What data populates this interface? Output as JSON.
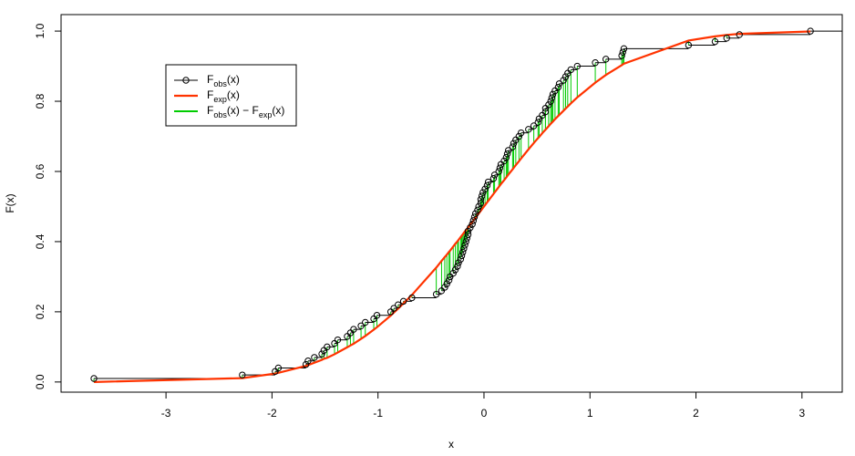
{
  "chart_data": {
    "type": "ecdf",
    "xlabel": "x",
    "ylabel": "F(x)",
    "x": [
      -3.68,
      -2.28,
      -1.97,
      -1.94,
      -1.68,
      -1.66,
      -1.6,
      -1.53,
      -1.51,
      -1.48,
      -1.41,
      -1.38,
      -1.29,
      -1.26,
      -1.23,
      -1.16,
      -1.12,
      -1.04,
      -1.01,
      -0.88,
      -0.85,
      -0.81,
      -0.76,
      -0.68,
      -0.45,
      -0.4,
      -0.37,
      -0.35,
      -0.33,
      -0.32,
      -0.29,
      -0.27,
      -0.25,
      -0.24,
      -0.22,
      -0.21,
      -0.2,
      -0.19,
      -0.18,
      -0.17,
      -0.16,
      -0.15,
      -0.15,
      -0.13,
      -0.11,
      -0.1,
      -0.09,
      -0.08,
      -0.06,
      -0.05,
      -0.03,
      -0.03,
      -0.02,
      -0.01,
      0.01,
      0.03,
      0.04,
      0.09,
      0.1,
      0.14,
      0.15,
      0.16,
      0.19,
      0.21,
      0.22,
      0.23,
      0.27,
      0.28,
      0.3,
      0.33,
      0.35,
      0.42,
      0.47,
      0.51,
      0.52,
      0.55,
      0.58,
      0.58,
      0.61,
      0.63,
      0.64,
      0.65,
      0.67,
      0.7,
      0.71,
      0.75,
      0.77,
      0.79,
      0.82,
      0.88,
      1.05,
      1.15,
      1.3,
      1.31,
      1.32,
      1.93,
      2.18,
      2.29,
      2.41,
      3.08
    ],
    "series": [
      {
        "name": "Fobs(x)",
        "color": "#000000",
        "values": [
          0.01,
          0.02,
          0.03,
          0.04,
          0.05,
          0.06,
          0.07,
          0.08,
          0.09,
          0.1,
          0.11,
          0.12,
          0.13,
          0.14,
          0.15,
          0.16,
          0.17,
          0.18,
          0.19,
          0.2,
          0.21,
          0.22,
          0.23,
          0.24,
          0.25,
          0.26,
          0.27,
          0.28,
          0.29,
          0.3,
          0.31,
          0.32,
          0.33,
          0.34,
          0.35,
          0.36,
          0.37,
          0.38,
          0.39,
          0.4,
          0.41,
          0.42,
          0.43,
          0.44,
          0.45,
          0.46,
          0.47,
          0.48,
          0.49,
          0.5,
          0.51,
          0.52,
          0.53,
          0.54,
          0.55,
          0.56,
          0.57,
          0.58,
          0.59,
          0.6,
          0.61,
          0.62,
          0.63,
          0.64,
          0.65,
          0.66,
          0.67,
          0.68,
          0.69,
          0.7,
          0.71,
          0.72,
          0.73,
          0.74,
          0.75,
          0.76,
          0.77,
          0.78,
          0.79,
          0.8,
          0.81,
          0.82,
          0.83,
          0.84,
          0.85,
          0.86,
          0.87,
          0.88,
          0.89,
          0.9,
          0.91,
          0.92,
          0.93,
          0.94,
          0.95,
          0.96,
          0.97,
          0.98,
          0.99,
          1.0
        ]
      },
      {
        "name": "Fexp(x)",
        "color": "#ff3300",
        "values": [
          0.0,
          0.011,
          0.024,
          0.026,
          0.046,
          0.048,
          0.055,
          0.063,
          0.066,
          0.069,
          0.079,
          0.084,
          0.099,
          0.104,
          0.109,
          0.123,
          0.131,
          0.149,
          0.156,
          0.189,
          0.198,
          0.209,
          0.224,
          0.248,
          0.326,
          0.345,
          0.356,
          0.363,
          0.371,
          0.374,
          0.386,
          0.394,
          0.401,
          0.405,
          0.413,
          0.417,
          0.421,
          0.425,
          0.429,
          0.433,
          0.436,
          0.44,
          0.44,
          0.448,
          0.456,
          0.46,
          0.464,
          0.468,
          0.476,
          0.48,
          0.488,
          0.488,
          0.492,
          0.496,
          0.504,
          0.512,
          0.516,
          0.536,
          0.54,
          0.556,
          0.56,
          0.564,
          0.575,
          0.583,
          0.587,
          0.591,
          0.606,
          0.61,
          0.618,
          0.629,
          0.637,
          0.663,
          0.681,
          0.695,
          0.698,
          0.709,
          0.719,
          0.719,
          0.729,
          0.736,
          0.739,
          0.742,
          0.749,
          0.758,
          0.761,
          0.773,
          0.779,
          0.785,
          0.794,
          0.811,
          0.853,
          0.875,
          0.903,
          0.905,
          0.907,
          0.973,
          0.985,
          0.989,
          0.992,
          0.999
        ]
      },
      {
        "name": "Fobs(x) − Fexp(x)",
        "color": "#00cc00"
      }
    ],
    "xlim": [
      -3.99,
      3.38
    ],
    "ylim": [
      -0.029,
      1.047
    ],
    "xticks": [
      -3,
      -2,
      -1,
      0,
      1,
      2,
      3
    ],
    "yticks": [
      {
        "value": 0,
        "label": "0.0"
      },
      {
        "value": 0.2,
        "label": "0.2"
      },
      {
        "value": 0.4,
        "label": "0.4"
      },
      {
        "value": 0.6,
        "label": "0.6"
      },
      {
        "value": 0.8,
        "label": "0.8"
      },
      {
        "value": 1,
        "label": "1.0"
      }
    ],
    "legend": "top-left"
  }
}
